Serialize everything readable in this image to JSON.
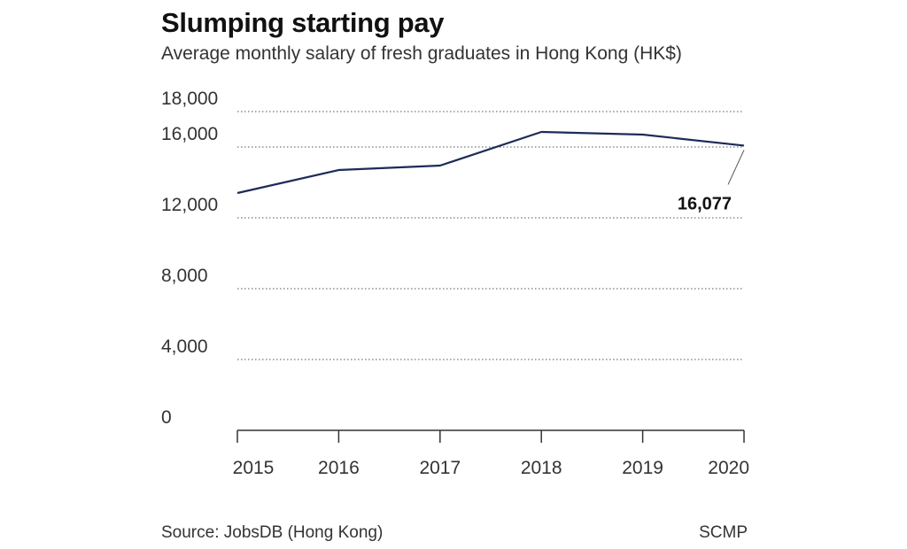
{
  "chart_data": {
    "type": "line",
    "title": "Slumping starting pay",
    "subtitle": "Average monthly salary of fresh graduates in Hong Kong (HK$)",
    "x": [
      "2015",
      "2016",
      "2017",
      "2018",
      "2019",
      "2020"
    ],
    "series": [
      {
        "values": [
          13400,
          14700,
          14950,
          16850,
          16700,
          16077
        ]
      }
    ],
    "yticks": [
      0,
      4000,
      8000,
      12000,
      16000,
      18000
    ],
    "ytick_labels": [
      "0",
      "4,000",
      "8,000",
      "12,000",
      "16,000",
      "18,000"
    ],
    "ylim": [
      0,
      18000
    ],
    "grid": "dotted horizontal",
    "annotation": {
      "x": "2020",
      "label": "16,077"
    },
    "line_color": "#1d2b57"
  },
  "footer": {
    "source": "Source: JobsDB (Hong Kong)",
    "credit": "SCMP"
  }
}
